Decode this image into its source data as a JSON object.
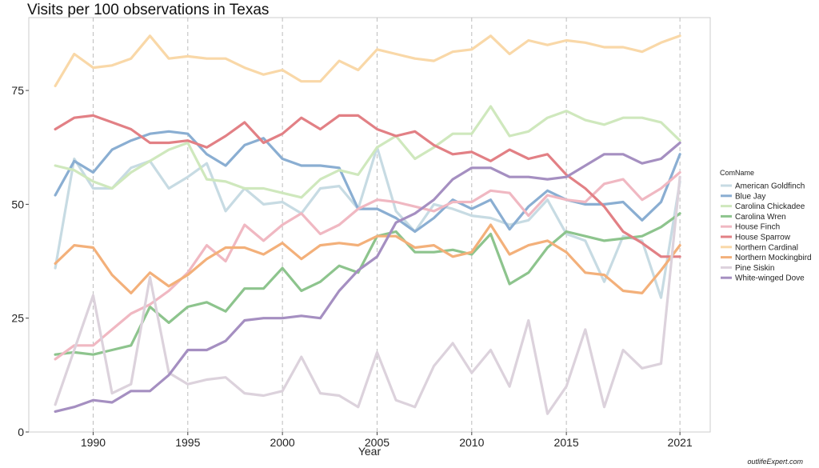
{
  "watermark": "outlifeExpert.com",
  "chart_data": {
    "type": "line",
    "title": "Visits per 100 observations in Texas",
    "xlabel": "Year",
    "ylabel": "",
    "xlim": [
      1986.6,
      2022.6
    ],
    "ylim": [
      0,
      91
    ],
    "x_ticks": [
      1990,
      1995,
      2000,
      2005,
      2010,
      2015,
      2021
    ],
    "y_ticks": [
      0,
      25,
      50,
      75
    ],
    "vertical_gridlines": true,
    "vertical_gridline_style": "dashed",
    "legend_title": "ComName",
    "legend_position": "right",
    "x": [
      1988,
      1989,
      1990,
      1991,
      1992,
      1993,
      1994,
      1995,
      1996,
      1997,
      1998,
      1999,
      2000,
      2001,
      2002,
      2003,
      2004,
      2005,
      2006,
      2007,
      2008,
      2009,
      2010,
      2011,
      2012,
      2013,
      2014,
      2015,
      2016,
      2017,
      2018,
      2019,
      2020,
      2021
    ],
    "series": [
      {
        "name": "American Goldfinch",
        "color": "#c7dbe3",
        "values": [
          36,
          60,
          53.5,
          53.5,
          58,
          59.5,
          53.5,
          56,
          59,
          48.5,
          53.5,
          50,
          50.5,
          48,
          53.5,
          54,
          49,
          62.5,
          48.5,
          44,
          50,
          49,
          47.5,
          47,
          45.5,
          46.5,
          51,
          43.5,
          42,
          33,
          43,
          42,
          29.5,
          55
        ]
      },
      {
        "name": "Blue Jay",
        "color": "#8aaed2",
        "values": [
          52,
          59.5,
          57,
          62,
          64,
          65.5,
          66,
          65.5,
          61,
          58.5,
          63,
          64.5,
          60,
          58.5,
          58.5,
          58,
          49,
          49,
          47,
          44,
          47,
          51,
          49,
          51,
          44.5,
          49.5,
          53,
          51,
          50,
          50,
          50.5,
          46.5,
          50.5,
          61
        ]
      },
      {
        "name": "Carolina Chickadee",
        "color": "#cfe8bd",
        "values": [
          58.5,
          57.5,
          55,
          53.5,
          57,
          59.5,
          62,
          63.5,
          55.5,
          55,
          53.5,
          53.5,
          52.5,
          51.5,
          55.5,
          57.5,
          56.5,
          62.5,
          65,
          60,
          62.5,
          65.5,
          65.5,
          71.5,
          65,
          66,
          69,
          70.5,
          68.5,
          67.5,
          69,
          69,
          68,
          64
        ]
      },
      {
        "name": "Carolina Wren",
        "color": "#8dc48d",
        "values": [
          17,
          17.5,
          17,
          18,
          19,
          27.5,
          24,
          27.5,
          28.5,
          26.5,
          31.5,
          31.5,
          36,
          31,
          33,
          36.5,
          35,
          43,
          44,
          39.5,
          39.5,
          40,
          39,
          43.5,
          32.5,
          35,
          40.5,
          44,
          43,
          42,
          42.5,
          43,
          45,
          48
        ]
      },
      {
        "name": "House Finch",
        "color": "#f0b8c2",
        "values": [
          16,
          19,
          19,
          22.5,
          26,
          28,
          31,
          35,
          41,
          37.5,
          45.5,
          42,
          45.5,
          48,
          43.5,
          45.5,
          49,
          51,
          50.5,
          49.5,
          48.5,
          50.5,
          50.5,
          53,
          52.5,
          47.5,
          52,
          51,
          50.5,
          54.5,
          55.5,
          51,
          53.5,
          57
        ]
      },
      {
        "name": "House Sparrow",
        "color": "#e28085",
        "values": [
          66.5,
          69,
          69.5,
          68,
          66.5,
          63.5,
          63.5,
          64,
          62.5,
          65,
          68,
          63.5,
          65.5,
          69,
          66.5,
          69.5,
          69.5,
          66.5,
          65,
          66,
          63,
          61,
          61.5,
          59.5,
          62,
          60,
          61,
          56.5,
          53.5,
          49.5,
          44,
          41.5,
          38.5,
          38.5
        ]
      },
      {
        "name": "Northern Cardinal",
        "color": "#f9d8a8",
        "values": [
          76,
          83,
          80,
          80.5,
          82,
          87,
          82,
          82.5,
          82,
          82,
          80,
          78.5,
          79.5,
          77,
          77,
          81.5,
          79.5,
          84,
          83,
          82,
          81.5,
          83.5,
          84,
          87,
          83,
          86,
          85,
          86,
          85.5,
          84.5,
          84.5,
          83.5,
          85.5,
          87
        ]
      },
      {
        "name": "Northern Mockingbird",
        "color": "#f3b07a",
        "values": [
          37,
          41,
          40.5,
          34.5,
          30.5,
          35,
          32,
          34.5,
          38,
          40.5,
          40.5,
          39,
          41.5,
          38,
          41,
          41.5,
          41,
          43,
          43,
          40.5,
          41,
          38.5,
          39.5,
          45.5,
          39,
          41,
          42,
          39.5,
          35,
          34.5,
          31,
          30.5,
          35.5,
          41
        ]
      },
      {
        "name": "Pine Siskin",
        "color": "#dcd2dc",
        "values": [
          6,
          18,
          30,
          8.5,
          10.5,
          34,
          13,
          10.5,
          11.5,
          12,
          8.5,
          8,
          9,
          16.5,
          8.5,
          8,
          5.5,
          17.5,
          7,
          5.5,
          14.5,
          19.5,
          13,
          18,
          10,
          24.5,
          4,
          10,
          22.5,
          5.5,
          18,
          14,
          15,
          56
        ]
      },
      {
        "name": "White-winged Dove",
        "color": "#a58fc1",
        "values": [
          4.5,
          5.5,
          7,
          6.5,
          9,
          9,
          12.5,
          18,
          18,
          20,
          24.5,
          25,
          25,
          25.5,
          25,
          31,
          35.5,
          38.5,
          46,
          48,
          51,
          55.5,
          58,
          58,
          56,
          56,
          55.5,
          56,
          58.5,
          61,
          61,
          59,
          60,
          63.5
        ]
      }
    ]
  }
}
